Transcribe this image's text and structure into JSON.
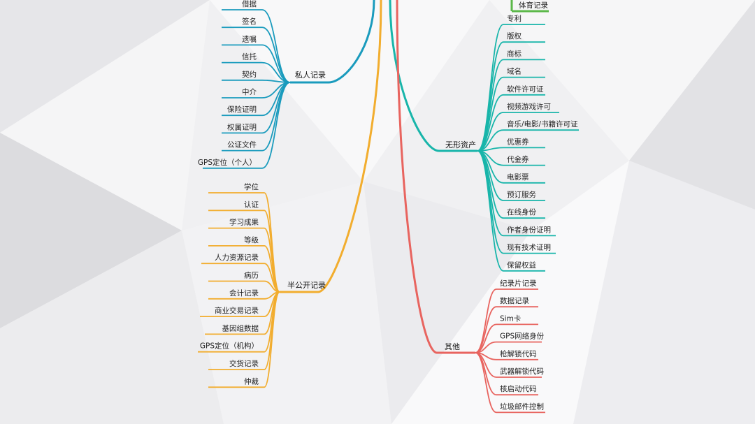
{
  "branches": [
    {
      "key": "private",
      "label": "私人记录",
      "color": "#1a9bbd",
      "side": "left",
      "items": [
        "借据",
        "签名",
        "遗嘱",
        "信托",
        "契约",
        "中介",
        "保险证明",
        "权属证明",
        "公证文件",
        "GPS定位（个人）"
      ]
    },
    {
      "key": "semi_public",
      "label": "半公开记录",
      "color": "#f2ad2e",
      "side": "left",
      "items": [
        "学位",
        "认证",
        "学习成果",
        "等级",
        "人力资源记录",
        "病历",
        "会计记录",
        "商业交易记录",
        "基因组数据",
        "GPS定位（机构）",
        "交货记录",
        "仲裁"
      ]
    },
    {
      "key": "intangible",
      "label": "无形资产",
      "color": "#18b5aa",
      "side": "right",
      "items": [
        "专利",
        "版权",
        "商标",
        "域名",
        "软件许可证",
        "视频游戏许可",
        "音乐/电影/书籍许可证",
        "优惠券",
        "代金券",
        "电影票",
        "预订服务",
        "在线身份",
        "作者身份证明",
        "现有技术证明",
        "保留权益"
      ]
    },
    {
      "key": "other",
      "label": "其他",
      "color": "#e8645f",
      "side": "right",
      "items": [
        "纪录片记录",
        "数据记录",
        "Sim卡",
        "GPS网络身份",
        "枪解锁代码",
        "武器解锁代码",
        "核启动代码",
        "垃圾邮件控制"
      ]
    }
  ],
  "top_partial": {
    "label": "体育记录",
    "color": "#5cb84a"
  }
}
